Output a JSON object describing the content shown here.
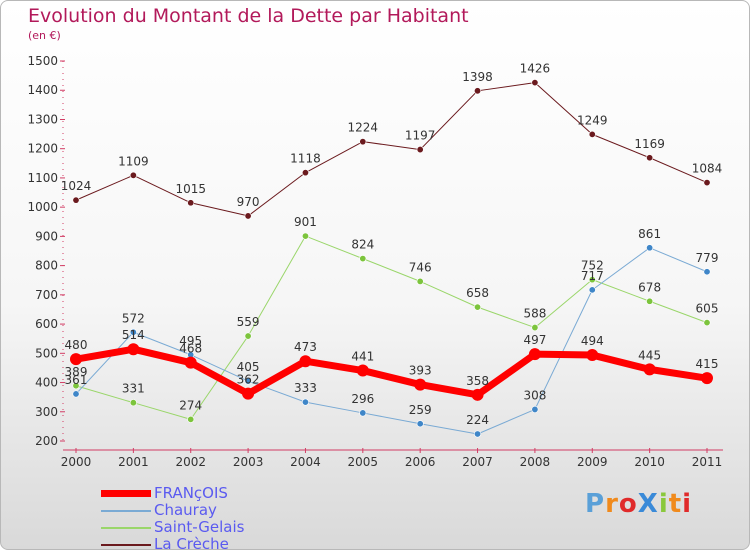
{
  "page": {
    "title": "Evolution du Montant de la Dette par Habitant",
    "subtitle": "(en €)",
    "brand": "ProXiti"
  },
  "brand_colors": [
    "#5aa0d8",
    "#f08a1c",
    "#e02a2a",
    "#3a8ad8",
    "#8ac83c",
    "#f08a1c",
    "#e02a2a"
  ],
  "chart_data": {
    "type": "line",
    "title": "Evolution du Montant de la Dette par Habitant",
    "subtitle": "(en €)",
    "xlabel": "",
    "ylabel": "",
    "x": [
      "2000",
      "2001",
      "2002",
      "2003",
      "2004",
      "2005",
      "2006",
      "2007",
      "2008",
      "2009",
      "2010",
      "2011"
    ],
    "ylim": [
      200,
      1500
    ],
    "yticks": [
      200,
      300,
      400,
      500,
      600,
      700,
      800,
      900,
      1000,
      1100,
      1200,
      1300,
      1400,
      1500
    ],
    "grid": false,
    "legend": "bottom-left",
    "series": [
      {
        "name": "La Crèche",
        "color": "#6b1a1e",
        "marker": "#6b1a1e",
        "width": 1,
        "values": [
          1024,
          1109,
          1015,
          970,
          1118,
          1224,
          1197,
          1398,
          1426,
          1249,
          1169,
          1084
        ]
      },
      {
        "name": "Saint-Gelais",
        "color": "#9ad66a",
        "marker": "#7cc43c",
        "width": 1,
        "values": [
          389,
          331,
          274,
          559,
          901,
          824,
          746,
          658,
          588,
          752,
          678,
          605
        ]
      },
      {
        "name": "Chauray",
        "color": "#7aaad4",
        "marker": "#3f86c8",
        "width": 1,
        "values": [
          361,
          572,
          495,
          405,
          333,
          296,
          259,
          224,
          308,
          717,
          861,
          779
        ]
      },
      {
        "name": "FRANçOIS",
        "color": "#ff0000",
        "marker": "#ff0000",
        "width": 7,
        "values": [
          480,
          514,
          468,
          362,
          473,
          441,
          393,
          358,
          497,
          494,
          445,
          415
        ]
      }
    ],
    "legend_order": [
      "FRANçOIS",
      "Chauray",
      "Saint-Gelais",
      "La Crèche"
    ]
  }
}
